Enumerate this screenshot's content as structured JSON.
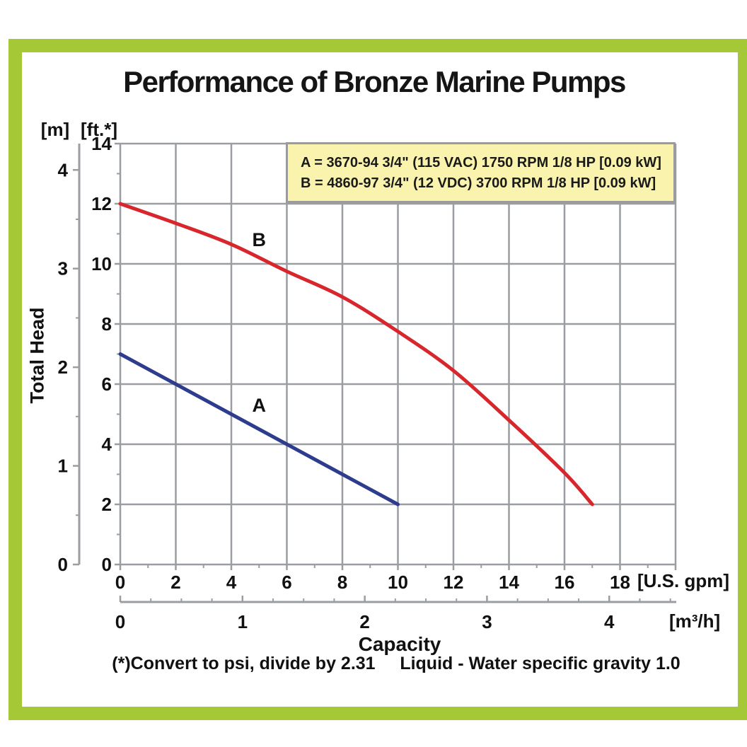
{
  "title": "Performance of Bronze Marine Pumps",
  "axes": {
    "left_m_unit": "[m]",
    "left_ft_unit": "[ft.*]",
    "y_axis_title": "Total Head",
    "x_axis_title": "Capacity",
    "gpm_unit": "[U.S. gpm]",
    "m3h_unit": "[m³/h]"
  },
  "legend": {
    "line_a": "A = 3670-94 3/4\" (115 VAC) 1750 RPM 1/8 HP [0.09 kW]",
    "line_b": "B = 4860-97 3/4\" (12 VDC) 3700 RPM 1/8 HP [0.09 kW]"
  },
  "footnote": "(*)Convert to psi, divide by 2.31     Liquid - Water specific gravity 1.0",
  "colors": {
    "frame_green": "#a5c837",
    "grid_gray": "#9a9da1",
    "legend_bg": "#faf3ae",
    "legend_border": "#9b9b9b",
    "curve_a_blue": "#2e3c8e",
    "curve_b_red": "#d8262d"
  },
  "chart_data": {
    "type": "line",
    "title": "Performance of Bronze Marine Pumps",
    "xlabel": "Capacity",
    "ylabel": "Total Head",
    "grid": "on",
    "x_axis_gpm": {
      "unit": "U.S. gpm",
      "min": 0,
      "max": 20,
      "major_step": 2,
      "minor_step": 1,
      "last_labeled": 18
    },
    "x_axis_m3h": {
      "unit": "m³/h",
      "min": 0,
      "max": 4.5,
      "major_step": 1,
      "minor_step": 0.25,
      "gpm_per_unit": 4.40287
    },
    "y_axis_ft": {
      "unit": "ft.*",
      "min": 0,
      "max": 14,
      "major_step": 2,
      "minor_step": 1
    },
    "y_axis_m": {
      "unit": "m",
      "min": 0,
      "max": 4,
      "major_step": 1,
      "minor_step": 0.5,
      "ft_per_unit": 3.2808
    },
    "series": [
      {
        "name": "A",
        "color": "#2e3c8e",
        "points_gpm_ft": [
          [
            0,
            7.0
          ],
          [
            2,
            6.0
          ],
          [
            4,
            5.0
          ],
          [
            6,
            4.0
          ],
          [
            8,
            3.0
          ],
          [
            10,
            2.0
          ]
        ],
        "label_pos_gpm_ft": [
          5.0,
          5.3
        ]
      },
      {
        "name": "B",
        "color": "#d8262d",
        "points_gpm_ft": [
          [
            0,
            12.0
          ],
          [
            2,
            11.35
          ],
          [
            4,
            10.65
          ],
          [
            6,
            9.75
          ],
          [
            8,
            8.9
          ],
          [
            10,
            7.75
          ],
          [
            12,
            6.45
          ],
          [
            14,
            4.8
          ],
          [
            16,
            3.05
          ],
          [
            17,
            2.0
          ]
        ],
        "label_pos_gpm_ft": [
          5.0,
          10.8
        ]
      }
    ]
  }
}
